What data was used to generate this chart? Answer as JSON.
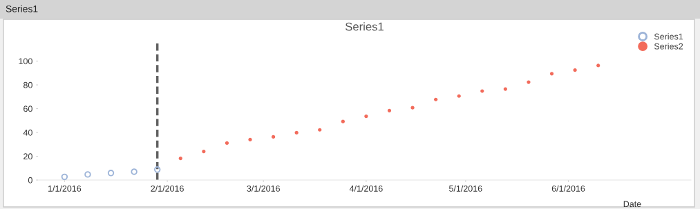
{
  "chart_data": {
    "type": "scatter",
    "title": "Series1",
    "xlabel": "Date",
    "annotations": [
      "Series1"
    ],
    "x": [
      "2016-01-01",
      "2016-01-08",
      "2016-01-15",
      "2016-01-22",
      "2016-01-29"
    ],
    "series": [
      {
        "name": "Series1",
        "color": "#9db4d8",
        "values": [
          2.7,
          4.7,
          5.9,
          7.0,
          8.8
        ]
      },
      {
        "name": "Series2",
        "color": "#f26b5b",
        "x": [
          "2016-02-05",
          "2016-02-12",
          "2016-02-19",
          "2016-02-26",
          "2016-03-04",
          "2016-03-11",
          "2016-03-18",
          "2016-03-25",
          "2016-04-01",
          "2016-04-08",
          "2016-04-15",
          "2016-04-22",
          "2016-04-29",
          "2016-05-06",
          "2016-05-13",
          "2016-05-20",
          "2016-05-27",
          "2016-06-03",
          "2016-06-10"
        ],
        "values": [
          18.2,
          24.0,
          31.1,
          34.0,
          36.3,
          39.8,
          42.2,
          49.2,
          53.6,
          58.4,
          60.8,
          67.7,
          70.6,
          74.8,
          76.5,
          82.3,
          89.4,
          92.4,
          96.3
        ]
      }
    ],
    "xlim": [
      "2015-12-24",
      "2016-07-08"
    ],
    "xticks": [
      {
        "value": "2016-01-01",
        "label": "1/1/2016"
      },
      {
        "value": "2016-02-01",
        "label": "2/1/2016"
      },
      {
        "value": "2016-03-01",
        "label": "3/1/2016"
      },
      {
        "value": "2016-04-01",
        "label": "4/1/2016"
      },
      {
        "value": "2016-05-01",
        "label": "5/1/2016"
      },
      {
        "value": "2016-06-01",
        "label": "6/1/2016"
      }
    ],
    "ylim": [
      0,
      116
    ],
    "yticks": [
      0,
      20,
      40,
      60,
      80,
      100
    ],
    "ref_lines": [
      {
        "axis": "x",
        "value": "2016-01-29",
        "color": "#606060",
        "line_style": "dashed"
      }
    ],
    "grid": false,
    "legend": "top right",
    "marker": "circle"
  }
}
